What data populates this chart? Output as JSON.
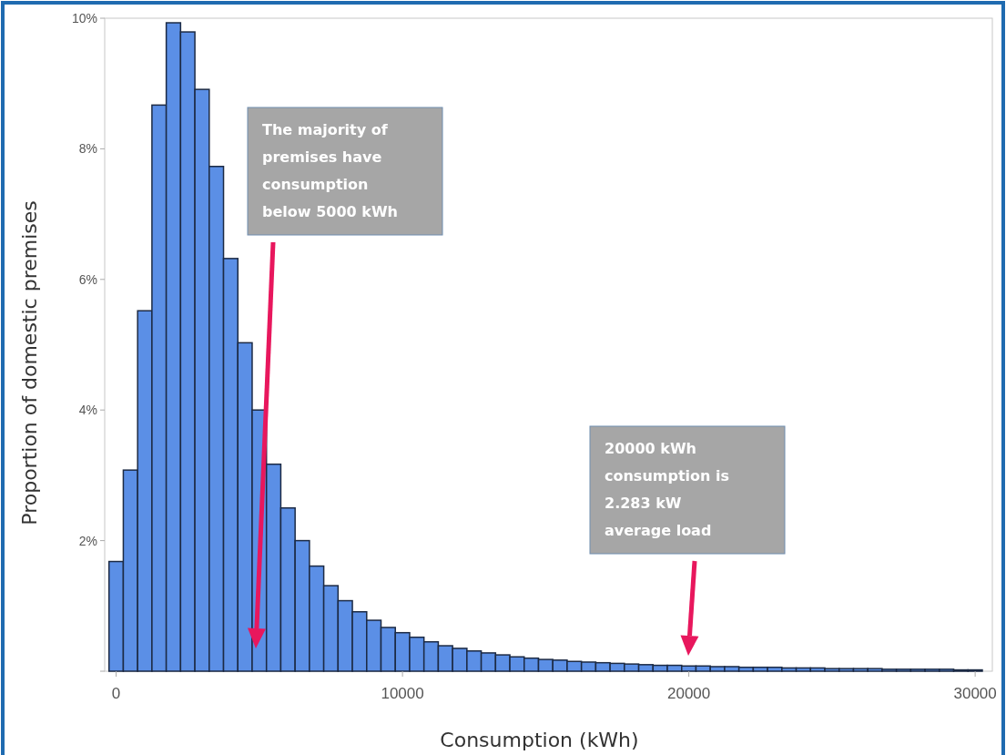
{
  "chart_data": {
    "type": "histogram",
    "xlabel": "Consumption (kWh)",
    "ylabel": "Proportion of domestic premises",
    "bins": [
      -250,
      250,
      750,
      1250,
      1750,
      2250,
      2750,
      3250,
      3750,
      4250,
      4750,
      5250,
      5750,
      6250,
      6750,
      7250,
      7750,
      8250,
      8750,
      9250,
      9750,
      10250,
      10750,
      11250,
      11750,
      12250,
      12750,
      13250,
      13750,
      14250,
      14750,
      15250,
      15750,
      16250,
      16750,
      17250,
      17750,
      18250,
      18750,
      19250,
      19750,
      20250,
      20750,
      21250,
      21750,
      22250,
      22750,
      23250,
      23750,
      24250,
      24750,
      25250,
      25750,
      26250,
      26750,
      27250,
      27750,
      28250,
      28750,
      29250,
      29750,
      30250
    ],
    "values": [
      1.68,
      3.08,
      5.52,
      8.67,
      9.93,
      9.79,
      8.91,
      7.73,
      6.32,
      5.03,
      4.0,
      3.17,
      2.5,
      2.0,
      1.61,
      1.31,
      1.08,
      0.91,
      0.78,
      0.67,
      0.59,
      0.52,
      0.45,
      0.39,
      0.35,
      0.31,
      0.28,
      0.25,
      0.22,
      0.2,
      0.18,
      0.17,
      0.15,
      0.14,
      0.13,
      0.12,
      0.11,
      0.1,
      0.09,
      0.09,
      0.08,
      0.08,
      0.07,
      0.07,
      0.06,
      0.06,
      0.06,
      0.05,
      0.05,
      0.05,
      0.04,
      0.04,
      0.04,
      0.04,
      0.03,
      0.03,
      0.03,
      0.03,
      0.03,
      0.02,
      0.02
    ],
    "color": "#5b8fe6",
    "xlim": [
      -400,
      30600
    ],
    "xticks": [
      0,
      10000,
      20000,
      30000
    ],
    "ylim": [
      0,
      10
    ],
    "yticks": [
      {
        "value": 0,
        "label": null
      },
      {
        "value": 2,
        "label": "2%"
      },
      {
        "value": 4,
        "label": "4%"
      },
      {
        "value": 6,
        "label": "6%"
      },
      {
        "value": 8,
        "label": "8%"
      },
      {
        "value": 10,
        "label": "10%"
      }
    ],
    "grid": false,
    "annotations": [
      "The majority of premises have consumption below 5000 kWh",
      "20000 kWh consumption is 2.283 kW average load"
    ]
  }
}
